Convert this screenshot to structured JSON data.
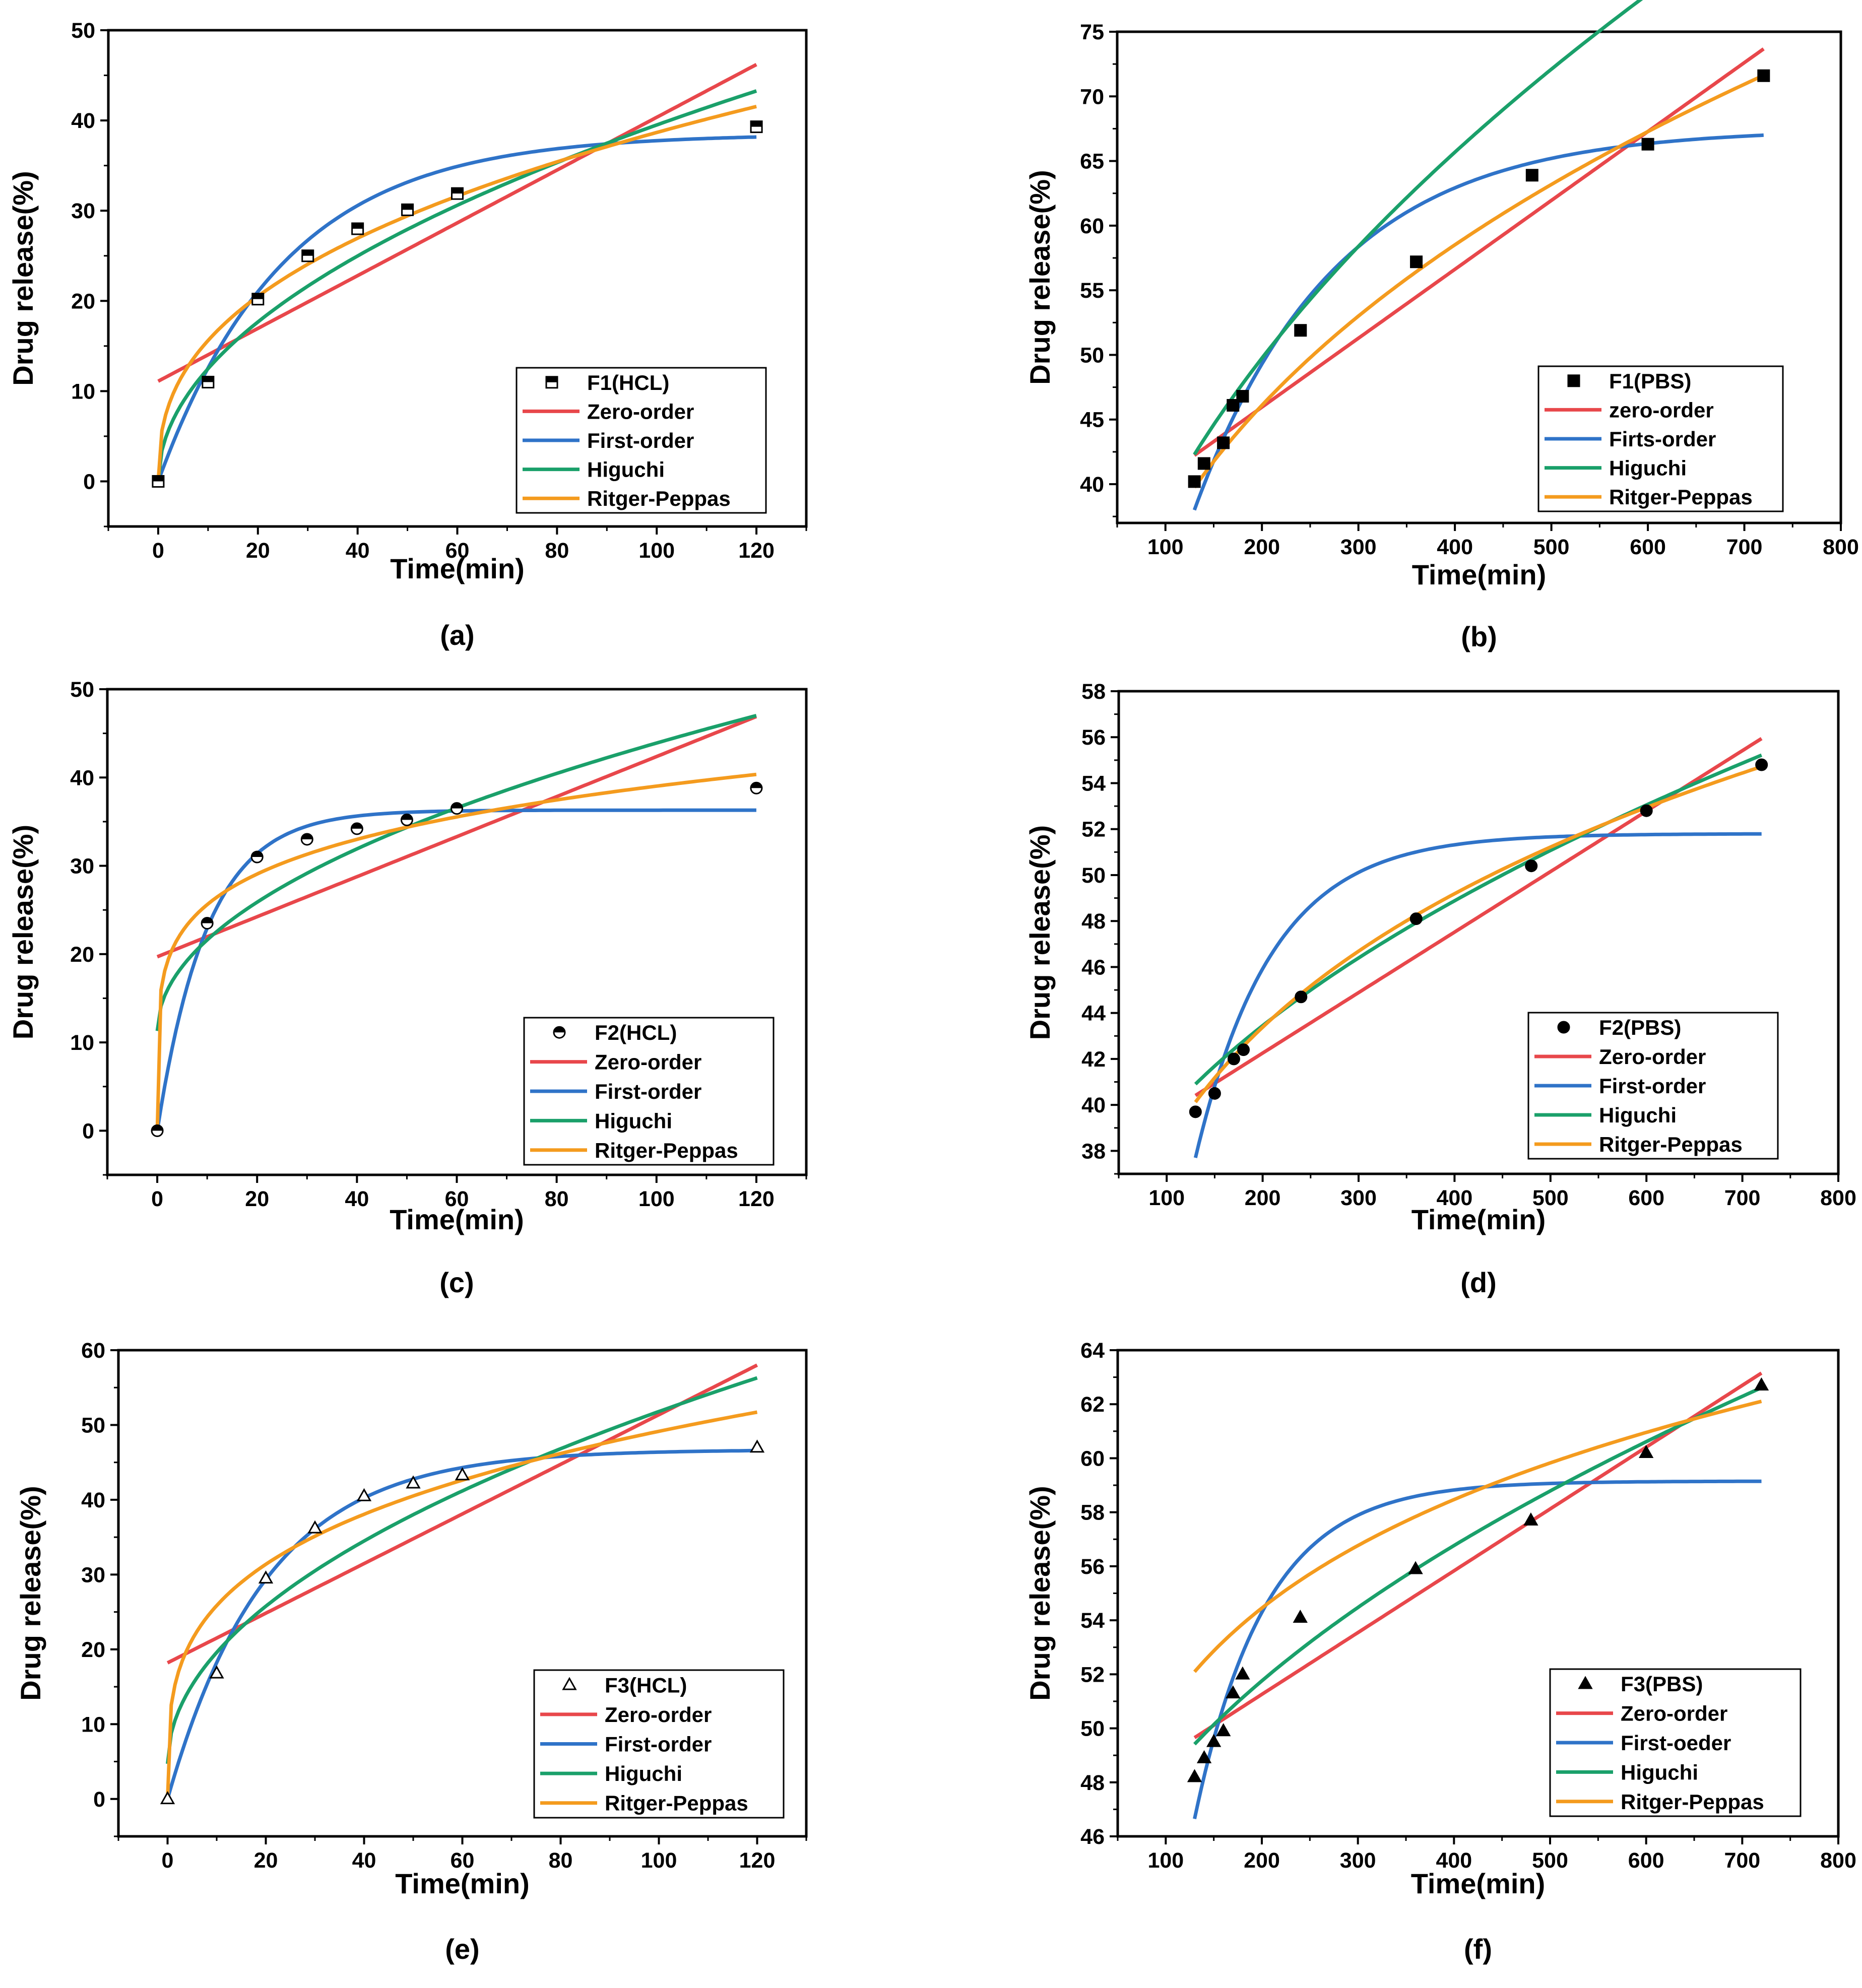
{
  "colors": {
    "zero": "#e8474b",
    "first": "#2f73c8",
    "higuchi": "#1aa06a",
    "peppas": "#f49b1e"
  },
  "chart_data": [
    {
      "type": "line",
      "caption": "(a)",
      "xlabel": "Time(min)",
      "ylabel": "Drug release(%)",
      "xlim": [
        -10,
        130
      ],
      "ylim": [
        -5,
        50
      ],
      "xticks": [
        0,
        20,
        40,
        60,
        80,
        100,
        120
      ],
      "yticks": [
        0,
        10,
        20,
        30,
        40,
        50
      ],
      "legend_position": "bottom-right",
      "data_series": {
        "name": "F1(HCL)",
        "marker": "square-half",
        "x": [
          0,
          10,
          20,
          30,
          40,
          50,
          60,
          120
        ],
        "y": [
          0,
          11,
          20.2,
          25,
          28,
          30.1,
          31.9,
          39.3
        ]
      },
      "series": [
        {
          "name": "Zero-order",
          "color": "zero",
          "model": "linear",
          "params": [
            11.1,
            0.2925
          ],
          "xrange": [
            0,
            120
          ]
        },
        {
          "name": "First-order",
          "color": "first",
          "model": "first",
          "params": [
            38.5,
            0.0395
          ],
          "xrange": [
            0,
            120
          ]
        },
        {
          "name": "Higuchi",
          "color": "higuchi",
          "model": "sqrt",
          "params": [
            3.95
          ],
          "xrange": [
            0,
            120
          ]
        },
        {
          "name": "Ritger-Peppas",
          "color": "peppas",
          "model": "power",
          "params": [
            6.3,
            0.394
          ],
          "xrange": [
            0,
            120
          ]
        }
      ]
    },
    {
      "type": "line",
      "caption": "(b)",
      "xlabel": "Time(min)",
      "ylabel": "Drug release(%)",
      "xlim": [
        50,
        800
      ],
      "ylim": [
        37,
        75
      ],
      "xticks": [
        100,
        200,
        300,
        400,
        500,
        600,
        700,
        800
      ],
      "yticks": [
        40,
        45,
        50,
        55,
        60,
        65,
        70,
        75
      ],
      "legend_position": "bottom-right",
      "data_series": {
        "name": "F1(PBS)",
        "marker": "square",
        "x": [
          130,
          140,
          160,
          170,
          180,
          240,
          360,
          480,
          600,
          720
        ],
        "y": [
          40.2,
          41.6,
          43.2,
          46.1,
          46.8,
          51.9,
          57.2,
          63.9,
          66.3,
          71.6
        ]
      },
      "series": [
        {
          "name": "zero-order",
          "color": "zero",
          "model": "linear",
          "params": [
            35.3,
            0.0533
          ],
          "xrange": [
            130,
            720
          ]
        },
        {
          "name": "Firts-order",
          "color": "first",
          "model": "first_shift",
          "params": [
            67.5,
            29.5,
            0.0069,
            130
          ],
          "xrange": [
            130,
            720
          ]
        },
        {
          "name": "Higuchi",
          "color": "higuchi",
          "model": "sqrt_offset",
          "params": [
            11.28,
            2.72
          ],
          "xrange": [
            130,
            720
          ]
        },
        {
          "name": "Ritger-Peppas",
          "color": "peppas",
          "model": "power",
          "params": [
            7.45,
            0.344
          ],
          "xrange": [
            130,
            720
          ]
        }
      ]
    },
    {
      "type": "line",
      "caption": "(c)",
      "xlabel": "Time(min)",
      "ylabel": "Drug release(%)",
      "xlim": [
        -10,
        130
      ],
      "ylim": [
        -5,
        50
      ],
      "xticks": [
        0,
        20,
        40,
        60,
        80,
        100,
        120
      ],
      "yticks": [
        0,
        10,
        20,
        30,
        40,
        50
      ],
      "legend_position": "bottom-right",
      "data_series": {
        "name": "F2(HCL)",
        "marker": "circle-half",
        "x": [
          0,
          10,
          20,
          30,
          40,
          50,
          60,
          120
        ],
        "y": [
          0,
          23.5,
          31,
          33,
          34.2,
          35.2,
          36.5,
          38.8
        ]
      },
      "series": [
        {
          "name": "Zero-order",
          "color": "zero",
          "model": "linear",
          "params": [
            19.7,
            0.2267
          ],
          "xrange": [
            0,
            120
          ]
        },
        {
          "name": "First-order",
          "color": "first",
          "model": "first",
          "params": [
            36.3,
            0.1
          ],
          "xrange": [
            0,
            120
          ]
        },
        {
          "name": "Higuchi",
          "color": "higuchi",
          "model": "sqrt_offset",
          "params": [
            11.3,
            3.26
          ],
          "xrange": [
            0,
            120
          ]
        },
        {
          "name": "Ritger-Peppas",
          "color": "peppas",
          "model": "power",
          "params": [
            16.8,
            0.183
          ],
          "xrange": [
            0,
            120
          ]
        }
      ]
    },
    {
      "type": "line",
      "caption": "(d)",
      "xlabel": "Time(min)",
      "ylabel": "Drug release(%)",
      "xlim": [
        50,
        800
      ],
      "ylim": [
        37,
        58
      ],
      "xticks": [
        100,
        200,
        300,
        400,
        500,
        600,
        700,
        800
      ],
      "yticks": [
        38,
        40,
        42,
        44,
        46,
        48,
        50,
        52,
        54,
        56,
        58
      ],
      "legend_position": "bottom-right",
      "data_series": {
        "name": "F2(PBS)",
        "marker": "circle",
        "x": [
          130,
          150,
          170,
          180,
          240,
          360,
          480,
          600,
          720
        ],
        "y": [
          39.7,
          40.5,
          42,
          42.4,
          44.7,
          48.1,
          50.4,
          52.8,
          54.8
        ]
      },
      "series": [
        {
          "name": "Zero-order",
          "color": "zero",
          "model": "linear",
          "params": [
            36.99,
            0.02632
          ],
          "xrange": [
            130,
            720
          ]
        },
        {
          "name": "First-order",
          "color": "first",
          "model": "first_shift",
          "params": [
            51.8,
            14.1,
            0.0125,
            130
          ],
          "xrange": [
            130,
            720
          ]
        },
        {
          "name": "Higuchi",
          "color": "higuchi",
          "model": "sqrt_offset",
          "params": [
            30.33,
            0.9275
          ],
          "xrange": [
            130,
            720
          ]
        },
        {
          "name": "Ritger-Peppas",
          "color": "peppas",
          "model": "power",
          "params": [
            16.6,
            0.1813
          ],
          "xrange": [
            130,
            720
          ]
        }
      ]
    },
    {
      "type": "line",
      "caption": "(e)",
      "xlabel": "Time(min)",
      "ylabel": "Drug release(%)",
      "xlim": [
        -10,
        130
      ],
      "ylim": [
        -5,
        60
      ],
      "xticks": [
        0,
        20,
        40,
        60,
        80,
        100,
        120
      ],
      "yticks": [
        0,
        10,
        20,
        30,
        40,
        50,
        60
      ],
      "legend_position": "bottom-right",
      "data_series": {
        "name": "F3(HCL)",
        "marker": "triangle-open",
        "x": [
          0,
          10,
          20,
          30,
          40,
          50,
          60,
          120
        ],
        "y": [
          0,
          16.8,
          29.5,
          36.2,
          40.5,
          42.2,
          43.3,
          47
        ]
      },
      "series": [
        {
          "name": "Zero-order",
          "color": "zero",
          "model": "linear",
          "params": [
            18.2,
            0.3317
          ],
          "xrange": [
            0,
            120
          ]
        },
        {
          "name": "First-order",
          "color": "first",
          "model": "first",
          "params": [
            46.7,
            0.0495
          ],
          "xrange": [
            0,
            120
          ]
        },
        {
          "name": "Higuchi",
          "color": "higuchi",
          "model": "sqrt_offset",
          "params": [
            4.7,
            4.71
          ],
          "xrange": [
            0,
            120
          ]
        },
        {
          "name": "Ritger-Peppas",
          "color": "peppas",
          "model": "power",
          "params": [
            13.6,
            0.279
          ],
          "xrange": [
            0,
            120
          ]
        }
      ]
    },
    {
      "type": "line",
      "caption": "(f)",
      "xlabel": "Time(min)",
      "ylabel": "Drug release(%)",
      "xlim": [
        50,
        800
      ],
      "ylim": [
        46,
        64
      ],
      "xticks": [
        100,
        200,
        300,
        400,
        500,
        600,
        700,
        800
      ],
      "yticks": [
        46,
        48,
        50,
        52,
        54,
        56,
        58,
        60,
        62,
        64
      ],
      "legend_position": "bottom-right",
      "data_series": {
        "name": "F3(PBS)",
        "marker": "triangle",
        "x": [
          130,
          140,
          150,
          160,
          170,
          180,
          240,
          360,
          480,
          600,
          720
        ],
        "y": [
          48.2,
          48.9,
          49.5,
          49.9,
          51.3,
          52,
          54.1,
          55.9,
          57.7,
          60.2,
          62.7
        ]
      },
      "series": [
        {
          "name": "Zero-order",
          "color": "zero",
          "model": "linear",
          "params": [
            46.68,
            0.02288
          ],
          "xrange": [
            130,
            720
          ]
        },
        {
          "name": "First-oeder",
          "color": "first",
          "model": "first_shift",
          "params": [
            59.15,
            12.5,
            0.0135,
            130
          ],
          "xrange": [
            130,
            720
          ]
        },
        {
          "name": "Higuchi",
          "color": "higuchi",
          "model": "sqrt_offset",
          "params": [
            39.66,
            0.8553
          ],
          "xrange": [
            130,
            720
          ]
        },
        {
          "name": "Ritger-Peppas",
          "color": "peppas",
          "model": "power",
          "params": [
            31.6,
            0.1027
          ],
          "xrange": [
            130,
            720
          ]
        }
      ]
    }
  ]
}
